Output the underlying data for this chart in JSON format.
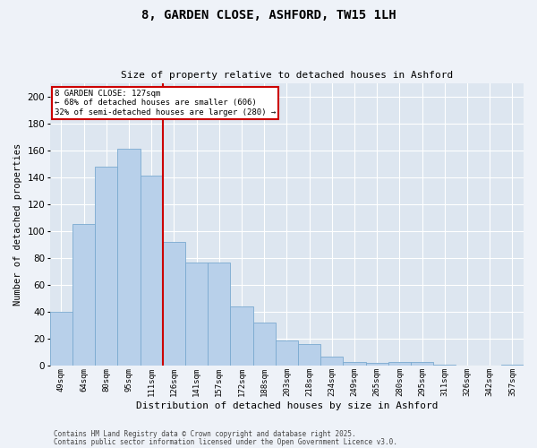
{
  "title_line1": "8, GARDEN CLOSE, ASHFORD, TW15 1LH",
  "title_line2": "Size of property relative to detached houses in Ashford",
  "xlabel": "Distribution of detached houses by size in Ashford",
  "ylabel": "Number of detached properties",
  "categories": [
    "49sqm",
    "64sqm",
    "80sqm",
    "95sqm",
    "111sqm",
    "126sqm",
    "141sqm",
    "157sqm",
    "172sqm",
    "188sqm",
    "203sqm",
    "218sqm",
    "234sqm",
    "249sqm",
    "265sqm",
    "280sqm",
    "295sqm",
    "311sqm",
    "326sqm",
    "342sqm",
    "357sqm"
  ],
  "values": [
    40,
    105,
    148,
    161,
    141,
    92,
    77,
    77,
    44,
    32,
    19,
    16,
    7,
    3,
    2,
    3,
    3,
    1,
    0,
    0,
    1
  ],
  "bar_color": "#b8d0ea",
  "bar_edge_color": "#7aaad0",
  "vline_index": 5,
  "vline_color": "#cc0000",
  "annotation_text": "8 GARDEN CLOSE: 127sqm\n← 68% of detached houses are smaller (606)\n32% of semi-detached houses are larger (280) →",
  "annotation_box_color": "#cc0000",
  "annotation_bg_color": "#ffffff",
  "ylim": [
    0,
    210
  ],
  "yticks": [
    0,
    20,
    40,
    60,
    80,
    100,
    120,
    140,
    160,
    180,
    200
  ],
  "footer_line1": "Contains HM Land Registry data © Crown copyright and database right 2025.",
  "footer_line2": "Contains public sector information licensed under the Open Government Licence v3.0.",
  "bg_color": "#eef2f8",
  "plot_bg_color": "#dde6f0",
  "grid_color": "#ffffff"
}
